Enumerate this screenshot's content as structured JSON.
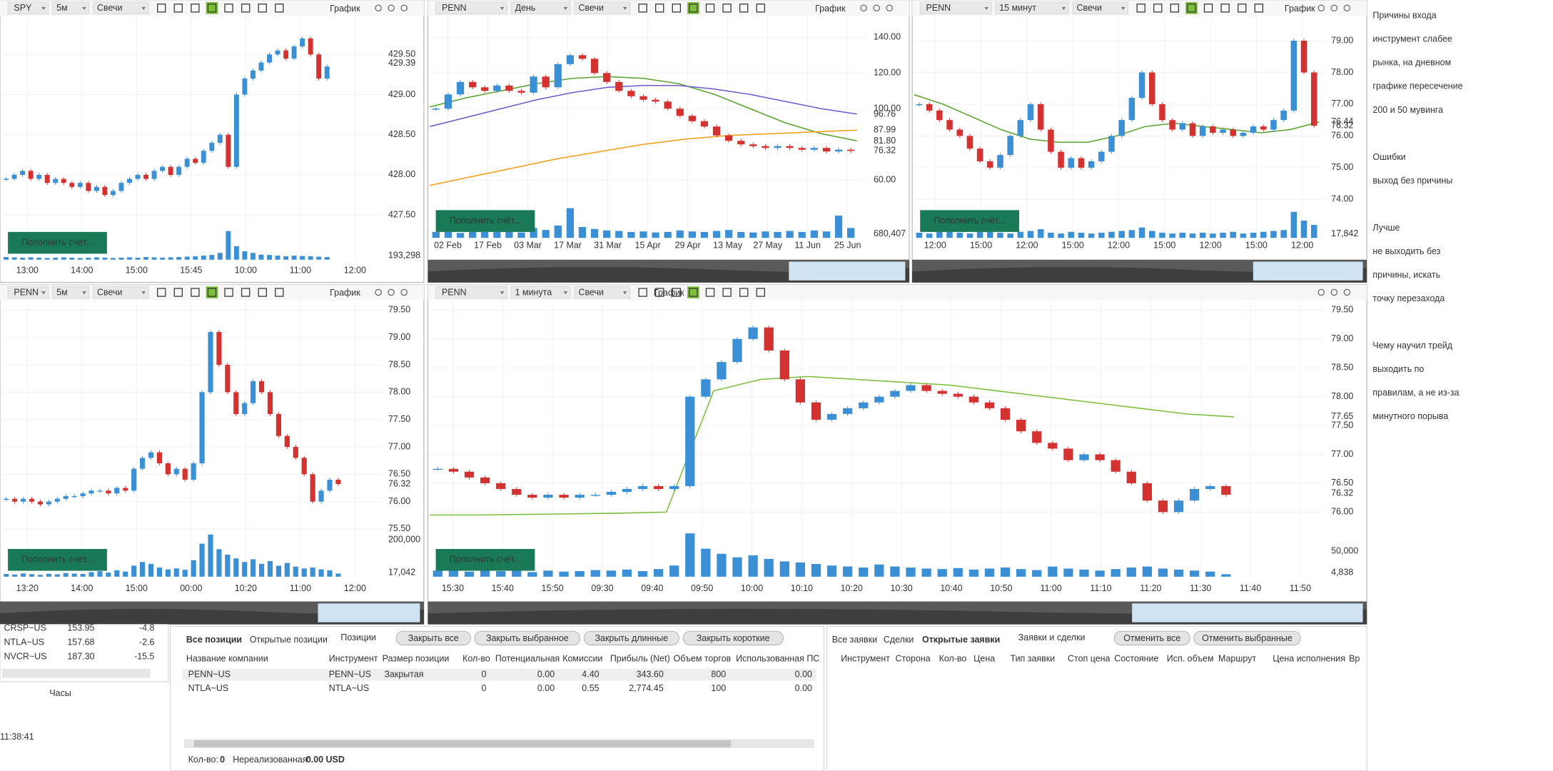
{
  "fund_button": "Пополнить счёт...",
  "charts": [
    {
      "symbol": "SPY",
      "interval": "5м",
      "style": "Свечи",
      "title": "График",
      "ylim": [
        427.4,
        429.98
      ],
      "yticks": [
        {
          "value": 427.5,
          "label": "427.50"
        },
        {
          "value": 428,
          "label": "428.00"
        },
        {
          "value": 428.5,
          "label": "428.50"
        },
        {
          "value": 429,
          "label": "429.00"
        },
        {
          "value": 429.5,
          "label": "429.50"
        }
      ],
      "price_labels": [
        {
          "value": 429.39,
          "label": "429.39",
          "color": "#2f86c9"
        }
      ],
      "closes": [
        427.95,
        428.0,
        428.05,
        427.95,
        428.0,
        427.9,
        427.95,
        427.9,
        427.85,
        427.9,
        427.8,
        427.85,
        427.75,
        427.8,
        427.9,
        427.95,
        428.0,
        427.95,
        428.05,
        428.1,
        428.0,
        428.1,
        428.2,
        428.15,
        428.3,
        428.4,
        428.5,
        428.1,
        429.0,
        429.2,
        429.3,
        429.4,
        429.5,
        429.55,
        429.45,
        429.6,
        429.7,
        429.5,
        429.2,
        429.35
      ],
      "volume": [
        8,
        7,
        6,
        7,
        6,
        5,
        6,
        7,
        6,
        5,
        6,
        7,
        6,
        5,
        6,
        7,
        6,
        8,
        7,
        6,
        7,
        8,
        9,
        10,
        12,
        14,
        20,
        85,
        40,
        25,
        20,
        15,
        14,
        12,
        10,
        12,
        11,
        10,
        9,
        8
      ],
      "vlim": [
        0,
        100
      ],
      "volume_label": "193,298",
      "xlabels": [
        "13:00",
        "14:00",
        "15:00",
        "15:45",
        "10:00",
        "11:00",
        "12:00"
      ]
    },
    {
      "symbol": "PENN",
      "interval": "День",
      "style": "Свечи",
      "title": "График",
      "ylim": [
        47,
        152
      ],
      "yticks": [
        {
          "value": 60,
          "label": "60.00"
        },
        {
          "value": 100,
          "label": "100.00"
        },
        {
          "value": 120,
          "label": "120.00"
        },
        {
          "value": 140,
          "label": "140.00"
        }
      ],
      "price_labels": [
        {
          "value": 96.76,
          "label": "96.76",
          "color": "#6a5acd"
        },
        {
          "value": 87.99,
          "label": "87.99",
          "color": "#f39c12"
        },
        {
          "value": 81.8,
          "label": "81.80",
          "color": "#5aa02c"
        },
        {
          "value": 76.32,
          "label": "76.32",
          "color": "#d43131"
        }
      ],
      "closes": [
        100,
        108,
        115,
        112,
        110,
        113,
        110,
        109,
        118,
        112,
        125,
        130,
        128,
        120,
        115,
        110,
        107,
        105,
        104,
        100,
        96,
        93,
        90,
        85,
        82,
        80,
        79,
        78,
        79,
        78,
        77,
        78,
        76,
        77,
        76.32
      ],
      "ma": [
        {
          "color": "#5aa02c",
          "values": [
            101,
            106,
            110,
            114,
            117,
            118,
            117,
            114,
            108,
            100,
            92,
            86,
            82
          ]
        },
        {
          "color": "#6a5acd",
          "values": [
            90,
            95,
            100,
            105,
            109,
            112,
            113,
            113,
            111,
            108,
            104,
            100,
            97
          ]
        },
        {
          "color": "#f39c12",
          "values": [
            57,
            62,
            67,
            72,
            76,
            80,
            83,
            85,
            86,
            87,
            88
          ]
        }
      ],
      "volume": [
        12,
        15,
        10,
        14,
        12,
        18,
        13,
        11,
        20,
        16,
        25,
        60,
        22,
        18,
        15,
        14,
        12,
        13,
        11,
        12,
        15,
        13,
        12,
        14,
        16,
        12,
        11,
        13,
        12,
        14,
        12,
        15,
        13,
        45,
        20
      ],
      "vlim": [
        0,
        70
      ],
      "volume_label": "680,407",
      "xlabels": [
        "02 Feb",
        "17 Feb",
        "03 Mar",
        "17 Mar",
        "31 Mar",
        "15 Apr",
        "29 Apr",
        "13 May",
        "27 May",
        "11 Jun",
        "25 Jun"
      ]
    },
    {
      "symbol": "PENN",
      "interval": "15 минут",
      "style": "Свечи",
      "title": "График",
      "ylim": [
        73.88,
        79.78
      ],
      "yticks": [
        {
          "value": 74,
          "label": "74.00"
        },
        {
          "value": 75,
          "label": "75.00"
        },
        {
          "value": 76,
          "label": "76.00"
        },
        {
          "value": 77,
          "label": "77.00"
        },
        {
          "value": 78,
          "label": "78.00"
        },
        {
          "value": 79,
          "label": "79.00"
        }
      ],
      "price_labels": [
        {
          "value": 76.44,
          "label": "76.44",
          "color": "#5aa02c"
        },
        {
          "value": 76.32,
          "label": "76.32",
          "color": "#d43131"
        }
      ],
      "closes": [
        77.0,
        76.8,
        76.5,
        76.2,
        76.0,
        75.6,
        75.2,
        75.0,
        75.4,
        76.0,
        76.5,
        77.0,
        76.2,
        75.5,
        75.0,
        75.3,
        75.0,
        75.2,
        75.5,
        76.0,
        76.5,
        77.2,
        78.0,
        77.0,
        76.5,
        76.2,
        76.4,
        76.0,
        76.3,
        76.1,
        76.2,
        76.0,
        76.1,
        76.3,
        76.2,
        76.5,
        76.8,
        79.0,
        78.0,
        76.32
      ],
      "ma": [
        {
          "color": "#5aa02c",
          "values": [
            77.3,
            77.0,
            76.6,
            76.2,
            75.9,
            75.8,
            75.8,
            76.0,
            76.3,
            76.4,
            76.3,
            76.2,
            76.1,
            76.2,
            76.44
          ]
        }
      ],
      "volume": [
        6,
        5,
        7,
        8,
        6,
        5,
        7,
        9,
        6,
        5,
        7,
        8,
        10,
        6,
        5,
        7,
        6,
        5,
        6,
        7,
        8,
        9,
        12,
        8,
        6,
        5,
        6,
        5,
        6,
        5,
        6,
        7,
        5,
        6,
        7,
        8,
        9,
        30,
        20,
        15
      ],
      "vlim": [
        0,
        40
      ],
      "volume_label": "17,842",
      "xlabels": [
        "12:00",
        "15:00",
        "12:00",
        "15:00",
        "12:00",
        "15:00",
        "12:00",
        "15:00",
        "12:00"
      ]
    },
    {
      "symbol": "PENN",
      "interval": "5м",
      "style": "Свечи",
      "title": "График",
      "ylim": [
        75.46,
        79.68
      ],
      "yticks": [
        {
          "value": 75.5,
          "label": "75.50"
        },
        {
          "value": 76,
          "label": "76.00"
        },
        {
          "value": 76.5,
          "label": "76.50"
        },
        {
          "value": 77,
          "label": "77.00"
        },
        {
          "value": 77.5,
          "label": "77.50"
        },
        {
          "value": 78,
          "label": "78.00"
        },
        {
          "value": 78.5,
          "label": "78.50"
        },
        {
          "value": 79,
          "label": "79.00"
        },
        {
          "value": 79.5,
          "label": "79.50"
        }
      ],
      "price_labels": [
        {
          "value": 76.32,
          "label": "76.32",
          "color": "#d43131"
        }
      ],
      "closes": [
        76.05,
        76.0,
        76.05,
        76.0,
        75.95,
        76.0,
        76.05,
        76.1,
        76.1,
        76.15,
        76.2,
        76.2,
        76.15,
        76.25,
        76.2,
        76.6,
        76.8,
        76.9,
        76.7,
        76.5,
        76.6,
        76.4,
        76.7,
        78.0,
        79.1,
        78.5,
        78.0,
        77.6,
        77.8,
        78.2,
        78.0,
        77.6,
        77.2,
        77.0,
        76.8,
        76.5,
        76.0,
        76.2,
        76.4,
        76.32
      ],
      "volume": [
        15000,
        12000,
        18000,
        14000,
        10000,
        16000,
        13000,
        20000,
        17000,
        15000,
        25000,
        30000,
        22000,
        35000,
        28000,
        60000,
        80000,
        70000,
        50000,
        40000,
        45000,
        38000,
        90000,
        180000,
        230000,
        150000,
        120000,
        100000,
        80000,
        95000,
        70000,
        85000,
        60000,
        75000,
        55000,
        45000,
        50000,
        40000,
        35000,
        17042
      ],
      "vlim": [
        0,
        243000
      ],
      "volume_ticks": [
        {
          "value": 200000,
          "label": "200,000"
        }
      ],
      "volume_label": "17,042",
      "xlabels": [
        "13:20",
        "14:00",
        "15:00",
        "00:00",
        "10:20",
        "11:00",
        "12:00"
      ]
    },
    {
      "symbol": "PENN",
      "interval": "1 минута",
      "style": "Свечи",
      "title": "График",
      "ylim": [
        75.67,
        79.67
      ],
      "yticks": [
        {
          "value": 76,
          "label": "76.00"
        },
        {
          "value": 76.5,
          "label": "76.50"
        },
        {
          "value": 77,
          "label": "77.00"
        },
        {
          "value": 77.5,
          "label": "77.50"
        },
        {
          "value": 78,
          "label": "78.00"
        },
        {
          "value": 78.5,
          "label": "78.50"
        },
        {
          "value": 79,
          "label": "79.00"
        },
        {
          "value": 79.5,
          "label": "79.50"
        }
      ],
      "price_labels": [
        {
          "value": 77.65,
          "label": "77.65",
          "color": "#5aa02c"
        },
        {
          "value": 76.32,
          "label": "76.32",
          "color": "#d43131"
        }
      ],
      "closes": [
        76.75,
        76.7,
        76.6,
        76.5,
        76.4,
        76.3,
        76.25,
        76.3,
        76.25,
        76.3,
        76.3,
        76.35,
        76.4,
        76.45,
        76.4,
        76.45,
        78.0,
        78.3,
        78.6,
        79.0,
        79.2,
        78.8,
        78.3,
        77.9,
        77.6,
        77.7,
        77.8,
        77.9,
        78.0,
        78.1,
        78.2,
        78.1,
        78.05,
        78.0,
        77.9,
        77.8,
        77.6,
        77.4,
        77.2,
        77.1,
        76.9,
        77.0,
        76.9,
        76.7,
        76.5,
        76.2,
        76.0,
        76.2,
        76.4,
        76.45,
        76.3
      ],
      "ma": [
        {
          "color": "#7cbd3a",
          "values": [
            75.95,
            75.95,
            75.96,
            75.97,
            75.98,
            76.0,
            78.1,
            78.3,
            78.35,
            78.3,
            78.25,
            78.2,
            78.1,
            78.0,
            77.9,
            77.8,
            77.7,
            77.65
          ]
        }
      ],
      "volume": [
        12000,
        15000,
        10000,
        14000,
        11000,
        13000,
        9000,
        12000,
        10000,
        11000,
        13000,
        12000,
        14000,
        11000,
        15000,
        22000,
        85000,
        55000,
        45000,
        38000,
        42000,
        35000,
        30000,
        28000,
        25000,
        22000,
        20000,
        18000,
        24000,
        20000,
        18000,
        16000,
        15000,
        17000,
        14000,
        16000,
        18000,
        15000,
        13000,
        20000,
        16000,
        14000,
        12000,
        15000,
        18000,
        20000,
        16000,
        14000,
        12000,
        10000,
        4838
      ],
      "vlim": [
        0,
        87500
      ],
      "volume_ticks": [
        {
          "value": 50000,
          "label": "50,000"
        }
      ],
      "volume_label": "4,838",
      "xlabels": [
        "15:30",
        "15:40",
        "15:50",
        "09:30",
        "09:40",
        "09:50",
        "10:00",
        "10:10",
        "10:20",
        "10:30",
        "10:40",
        "10:50",
        "11:00",
        "11:10",
        "11:20",
        "11:30",
        "11:40",
        "11:50"
      ]
    }
  ],
  "watchlist": [
    {
      "symbol": "CRSP~US",
      "price": "153.95",
      "change": "-4.8"
    },
    {
      "symbol": "NTLA~US",
      "price": "157.68",
      "change": "-2.6"
    },
    {
      "symbol": "NVCR~US",
      "price": "187.30",
      "change": "-15.5"
    }
  ],
  "clock": {
    "title": "Часы",
    "time": "11:38:41"
  },
  "positions": {
    "tabs": [
      "Все позиции",
      "Открытые позиции"
    ],
    "title": "Позиции",
    "buttons": [
      "Закрыть все",
      "Закрыть выбранное",
      "Закрыть длинные",
      "Закрыть короткие"
    ],
    "columns": [
      "Название компании",
      "Инструмент",
      "Размер позиции",
      "Кол-во",
      "Потенциальная",
      "Комиссии",
      "Прибыль (Net)",
      "Объем торгов",
      "Использованная ПС"
    ],
    "rows": [
      {
        "name": "PENN~US",
        "instrument": "PENN~US",
        "status": "Закрытая",
        "qty": "0",
        "potential": "0.00",
        "commission": "4.40",
        "profit": "343.60",
        "volume": "800",
        "used": "0.00"
      },
      {
        "name": "NTLA~US",
        "instrument": "NTLA~US",
        "qty": "0",
        "potential": "0.00",
        "commission": "0.55",
        "profit": "2,774.45",
        "volume": "100",
        "used": "0.00"
      }
    ],
    "footer": {
      "qty_label": "Кол-во:",
      "qty": "0",
      "unrealized_label": "Нереализованная:",
      "unrealized": "0.00 USD"
    }
  },
  "orders": {
    "tabs": [
      "Все заявки",
      "Сделки",
      "Открытые заявки"
    ],
    "title": "Заявки и сделки",
    "buttons": [
      "Отменить все",
      "Отменить выбранные"
    ],
    "columns": [
      "Инструмент",
      "Сторона",
      "Кол-во",
      "Цена",
      "Тип заявки",
      "Стоп цена",
      "Состояние",
      "Исп. объем",
      "Маршрут",
      "Цена исполнения",
      "Вр"
    ]
  },
  "notes": [
    [
      "Причины входа",
      "инструмент слабее",
      "рынка, на дневном",
      "графике пересечение",
      "200 и 50 мувинга"
    ],
    [
      "Ошибки",
      "выход без причины"
    ],
    [
      "Лучше",
      "не выходить без",
      "причины, искать",
      "точку перезахода"
    ],
    [
      "Чему научил трейд",
      "выходить по",
      "правилам, а не из-за",
      "минутного порыва"
    ]
  ]
}
